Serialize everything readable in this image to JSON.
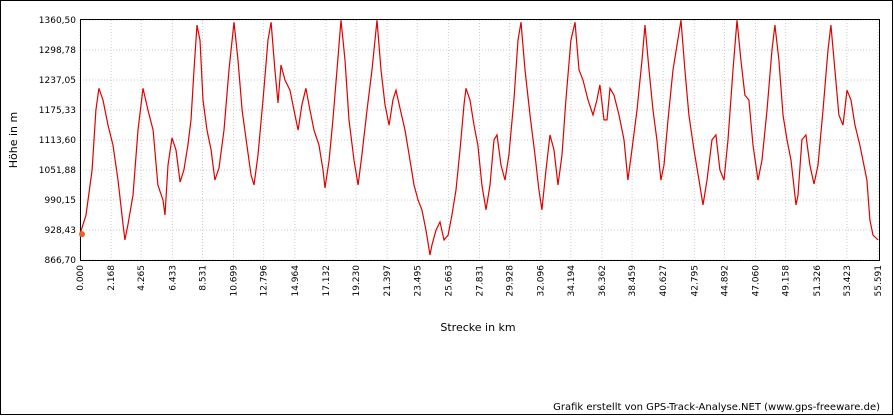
{
  "chart_data": {
    "type": "line",
    "y_label": "Höhe  in  m",
    "x_label": "Strecke  in  km",
    "credit": "Grafik erstellt von GPS-Track-Analyse.NET (www.gps-freeware.de)",
    "color": "#e00000",
    "grid": true,
    "xlim": [
      0,
      55.591
    ],
    "ylim": [
      866.7,
      1360.5
    ],
    "xticks": [
      {
        "value": 0,
        "label": "0.000"
      },
      2.168,
      4.265,
      6.433,
      8.531,
      10.699,
      12.796,
      14.964,
      17.132,
      {
        "value": 19.23,
        "label": "19.230"
      },
      21.397,
      23.495,
      25.663,
      27.831,
      29.928,
      32.096,
      34.194,
      36.362,
      38.459,
      40.627,
      42.795,
      44.892,
      {
        "value": 47.06,
        "label": "47.060"
      },
      49.158,
      51.326,
      53.423,
      55.591
    ],
    "yticks": [
      {
        "value": 866.7,
        "label": "866,70"
      },
      {
        "value": 928.43,
        "label": "928,43"
      },
      {
        "value": 990.15,
        "label": "990,15"
      },
      {
        "value": 1051.88,
        "label": "1051,88"
      },
      {
        "value": 1113.6,
        "label": "1113,60"
      },
      {
        "value": 1175.33,
        "label": "1175,33"
      },
      {
        "value": 1237.05,
        "label": "1237,05"
      },
      {
        "value": 1298.78,
        "label": "1298,78"
      },
      {
        "value": 1360.5,
        "label": "1360,50"
      }
    ],
    "x": [
      0,
      0.42,
      0.84,
      1.11,
      1.32,
      1.6,
      1.95,
      2.3,
      2.65,
      3.0,
      3.13,
      3.34,
      3.69,
      4.04,
      4.39,
      4.74,
      5.09,
      5.43,
      5.78,
      5.92,
      6.13,
      6.41,
      6.69,
      6.97,
      7.24,
      7.52,
      7.73,
      7.94,
      8.15,
      8.36,
      8.57,
      8.85,
      9.13,
      9.4,
      9.68,
      10.03,
      10.38,
      10.73,
      11.01,
      11.29,
      11.63,
      11.91,
      12.12,
      12.4,
      12.75,
      13.1,
      13.31,
      13.58,
      13.79,
      14.0,
      14.28,
      14.63,
      14.91,
      15.19,
      15.46,
      15.74,
      16.02,
      16.3,
      16.65,
      16.93,
      17.07,
      17.35,
      17.62,
      17.9,
      18.18,
      18.46,
      18.74,
      19.09,
      19.37,
      19.64,
      19.99,
      20.34,
      20.69,
      20.97,
      21.25,
      21.53,
      21.8,
      22.01,
      22.29,
      22.64,
      22.99,
      23.27,
      23.55,
      23.82,
      24.1,
      24.38,
      24.52,
      24.8,
      25.08,
      25.36,
      25.64,
      25.91,
      26.19,
      26.47,
      26.75,
      26.89,
      27.17,
      27.45,
      27.72,
      28.0,
      28.28,
      28.56,
      28.84,
      29.05,
      29.33,
      29.61,
      29.88,
      30.23,
      30.51,
      30.72,
      31.0,
      31.35,
      31.7,
      31.97,
      32.18,
      32.46,
      32.74,
      33.02,
      33.3,
      33.58,
      33.85,
      34.2,
      34.48,
      34.76,
      35.04,
      35.39,
      35.74,
      36.01,
      36.22,
      36.5,
      36.71,
      36.92,
      37.2,
      37.55,
      37.9,
      38.17,
      38.45,
      38.8,
      39.15,
      39.36,
      39.64,
      39.92,
      40.19,
      40.47,
      40.68,
      40.96,
      41.31,
      41.87,
      42.14,
      42.42,
      42.77,
      43.12,
      43.4,
      43.68,
      44.03,
      44.3,
      44.58,
      44.86,
      45.14,
      45.49,
      45.77,
      46.04,
      46.32,
      46.6,
      46.88,
      47.23,
      47.51,
      47.86,
      48.21,
      48.41,
      48.69,
      48.97,
      49.25,
      49.53,
      49.88,
      50.02,
      50.29,
      50.57,
      50.85,
      51.13,
      51.41,
      51.76,
      52.11,
      52.31,
      52.59,
      52.87,
      53.15,
      53.43,
      53.71,
      53.99,
      54.33,
      54.61,
      54.82,
      55.03,
      55.24,
      55.45,
      55.591
    ],
    "values": [
      920,
      959,
      1052,
      1175,
      1220,
      1196,
      1144,
      1103,
      1031,
      939,
      908,
      939,
      1000,
      1134,
      1220,
      1175,
      1134,
      1021,
      990,
      959,
      1062,
      1118,
      1093,
      1027,
      1052,
      1103,
      1155,
      1258,
      1350,
      1319,
      1196,
      1134,
      1093,
      1031,
      1056,
      1134,
      1258,
      1356,
      1278,
      1175,
      1103,
      1042,
      1021,
      1083,
      1196,
      1319,
      1356,
      1258,
      1190,
      1268,
      1237,
      1216,
      1175,
      1134,
      1186,
      1220,
      1175,
      1134,
      1103,
      1052,
      1015,
      1072,
      1155,
      1258,
      1360,
      1278,
      1155,
      1072,
      1021,
      1083,
      1175,
      1258,
      1360,
      1258,
      1186,
      1144,
      1196,
      1216,
      1179,
      1134,
      1072,
      1021,
      990,
      970,
      928,
      877,
      898,
      928,
      945,
      908,
      918,
      959,
      1011,
      1093,
      1186,
      1220,
      1196,
      1144,
      1103,
      1021,
      970,
      1021,
      1114,
      1124,
      1062,
      1031,
      1083,
      1196,
      1319,
      1356,
      1258,
      1165,
      1083,
      1011,
      970,
      1052,
      1124,
      1093,
      1021,
      1083,
      1196,
      1319,
      1356,
      1258,
      1237,
      1196,
      1165,
      1196,
      1227,
      1155,
      1155,
      1220,
      1206,
      1165,
      1114,
      1031,
      1093,
      1175,
      1278,
      1350,
      1258,
      1175,
      1114,
      1031,
      1062,
      1155,
      1258,
      1360,
      1258,
      1165,
      1093,
      1031,
      980,
      1031,
      1114,
      1124,
      1052,
      1031,
      1114,
      1258,
      1360,
      1278,
      1206,
      1196,
      1103,
      1031,
      1072,
      1175,
      1299,
      1350,
      1278,
      1165,
      1114,
      1072,
      980,
      1000,
      1114,
      1124,
      1062,
      1023,
      1062,
      1175,
      1299,
      1350,
      1258,
      1165,
      1144,
      1216,
      1196,
      1144,
      1103,
      1062,
      1031,
      949,
      918,
      912,
      908
    ]
  }
}
